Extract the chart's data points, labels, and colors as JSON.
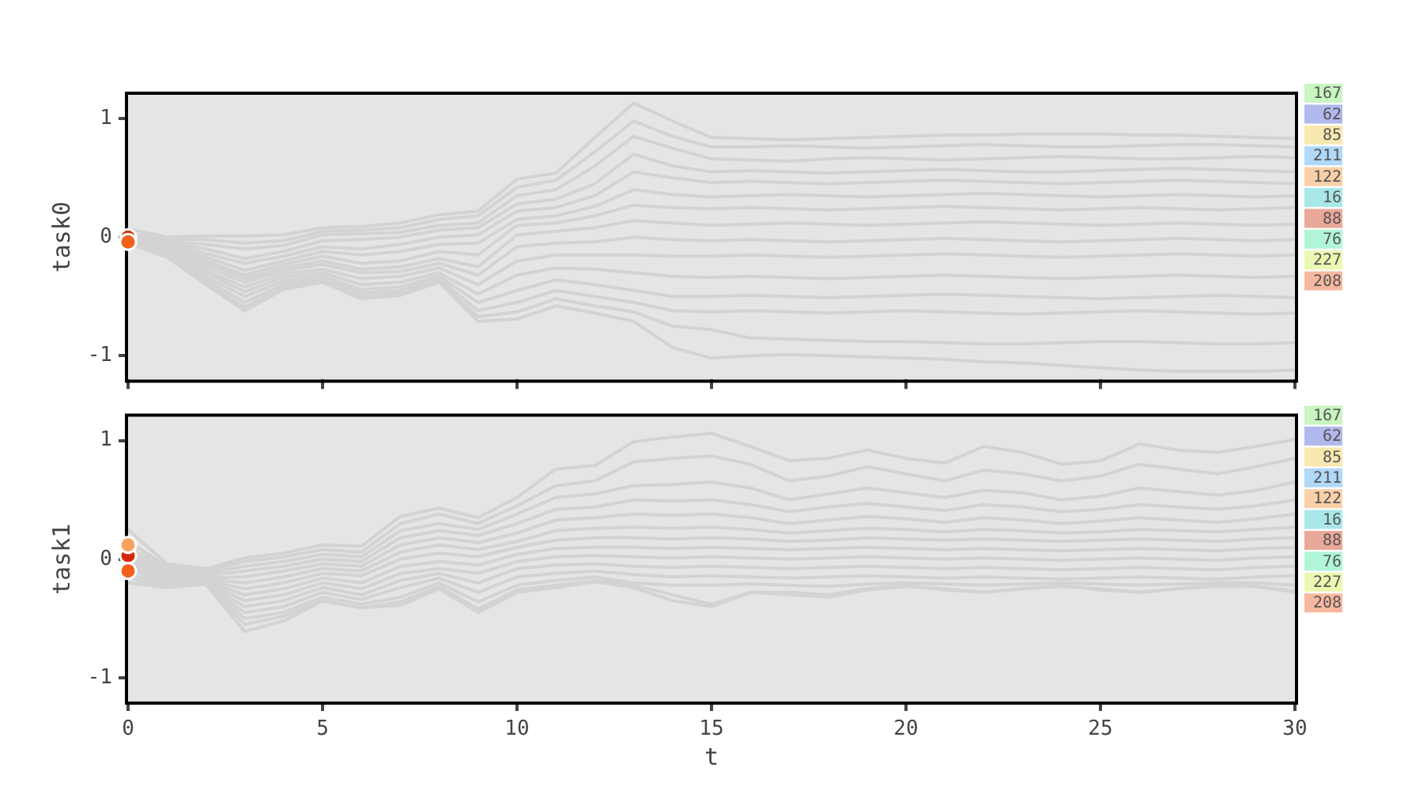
{
  "chart_data": [
    {
      "type": "line",
      "ylabel": "task0",
      "x": [
        0,
        1,
        2,
        3,
        4,
        5,
        6,
        7,
        8,
        9,
        10,
        11,
        12,
        13,
        14,
        15,
        16,
        17,
        18,
        19,
        20,
        21,
        22,
        23,
        24,
        25,
        26,
        27,
        28,
        29,
        30
      ],
      "xlim": [
        0,
        30
      ],
      "xticks": [
        0,
        5,
        10,
        15,
        20,
        25,
        30
      ],
      "ylim": [
        -1.2,
        1.2
      ],
      "yticks": [
        -1,
        0,
        1
      ],
      "tick_labels": "y",
      "legend": "right",
      "series": [
        {
          "color": "#d3d3d3",
          "values": [
            0.07,
            0,
            0.01,
            0.01,
            0.02,
            0.08,
            0.09,
            0.12,
            0.19,
            0.22,
            0.49,
            0.54,
            0.84,
            1.13,
            0.98,
            0.84,
            0.83,
            0.82,
            0.83,
            0.84,
            0.85,
            0.86,
            0.86,
            0.87,
            0.87,
            0.87,
            0.86,
            0.86,
            0.85,
            0.84,
            0.83
          ]
        },
        {
          "color": "#d3d3d3",
          "values": [
            0.03,
            -0.02,
            -0.02,
            -0.05,
            -0.03,
            0.05,
            0.06,
            0.08,
            0.15,
            0.18,
            0.42,
            0.48,
            0.72,
            0.98,
            0.85,
            0.76,
            0.76,
            0.77,
            0.76,
            0.75,
            0.76,
            0.77,
            0.78,
            0.77,
            0.76,
            0.76,
            0.77,
            0.78,
            0.78,
            0.77,
            0.76
          ]
        },
        {
          "color": "#d3d3d3",
          "values": [
            0.02,
            -0.04,
            -0.06,
            -0.1,
            -0.07,
            0.02,
            0.03,
            0.04,
            0.1,
            0.12,
            0.35,
            0.4,
            0.6,
            0.85,
            0.75,
            0.66,
            0.65,
            0.64,
            0.66,
            0.67,
            0.66,
            0.65,
            0.66,
            0.67,
            0.68,
            0.67,
            0.66,
            0.66,
            0.67,
            0.68,
            0.67
          ]
        },
        {
          "color": "#d3d3d3",
          "values": [
            0.01,
            -0.05,
            -0.1,
            -0.18,
            -0.12,
            -0.03,
            -0.02,
            0,
            0.06,
            0.08,
            0.28,
            0.32,
            0.45,
            0.7,
            0.6,
            0.55,
            0.56,
            0.55,
            0.54,
            0.55,
            0.56,
            0.57,
            0.56,
            0.55,
            0.55,
            0.56,
            0.57,
            0.58,
            0.57,
            0.56,
            0.55
          ]
        },
        {
          "color": "#d3d3d3",
          "values": [
            0,
            -0.06,
            -0.14,
            -0.22,
            -0.16,
            -0.08,
            -0.1,
            -0.06,
            0,
            0.02,
            0.22,
            0.25,
            0.35,
            0.55,
            0.5,
            0.46,
            0.47,
            0.46,
            0.45,
            0.46,
            0.47,
            0.48,
            0.47,
            0.46,
            0.45,
            0.46,
            0.47,
            0.48,
            0.47,
            0.46,
            0.45
          ]
        },
        {
          "color": "#d3d3d3",
          "values": [
            0,
            -0.07,
            -0.17,
            -0.28,
            -0.2,
            -0.12,
            -0.15,
            -0.12,
            -0.06,
            -0.05,
            0.15,
            0.18,
            0.26,
            0.4,
            0.36,
            0.34,
            0.35,
            0.36,
            0.35,
            0.34,
            0.35,
            0.36,
            0.37,
            0.36,
            0.35,
            0.34,
            0.35,
            0.36,
            0.35,
            0.34,
            0.35
          ]
        },
        {
          "color": "#d3d3d3",
          "values": [
            0,
            -0.08,
            -0.2,
            -0.32,
            -0.23,
            -0.16,
            -0.22,
            -0.2,
            -0.12,
            -0.15,
            0.1,
            0.12,
            0.18,
            0.27,
            0.25,
            0.24,
            0.25,
            0.24,
            0.23,
            0.24,
            0.25,
            0.26,
            0.25,
            0.24,
            0.23,
            0.24,
            0.25,
            0.24,
            0.23,
            0.24,
            0.25
          ]
        },
        {
          "color": "#d3d3d3",
          "values": [
            -0.01,
            -0.09,
            -0.22,
            -0.35,
            -0.26,
            -0.2,
            -0.27,
            -0.25,
            -0.18,
            -0.25,
            0.02,
            0.05,
            0.08,
            0.14,
            0.12,
            0.1,
            0.11,
            0.12,
            0.11,
            0.1,
            0.11,
            0.12,
            0.13,
            0.12,
            0.11,
            0.1,
            0.11,
            0.12,
            0.11,
            0.1,
            0.11
          ]
        },
        {
          "color": "#d3d3d3",
          "values": [
            -0.01,
            -0.1,
            -0.25,
            -0.38,
            -0.28,
            -0.23,
            -0.3,
            -0.29,
            -0.22,
            -0.32,
            -0.08,
            -0.05,
            -0.04,
            0,
            -0.02,
            -0.03,
            -0.02,
            -0.03,
            -0.04,
            -0.03,
            -0.02,
            -0.01,
            -0.02,
            -0.03,
            -0.04,
            -0.03,
            -0.02,
            -0.01,
            -0.02,
            -0.03,
            -0.02
          ]
        },
        {
          "color": "#d3d3d3",
          "values": [
            -0.02,
            -0.11,
            -0.28,
            -0.42,
            -0.31,
            -0.27,
            -0.35,
            -0.33,
            -0.26,
            -0.4,
            -0.2,
            -0.15,
            -0.15,
            -0.15,
            -0.16,
            -0.16,
            -0.15,
            -0.16,
            -0.17,
            -0.16,
            -0.15,
            -0.14,
            -0.15,
            -0.16,
            -0.17,
            -0.16,
            -0.15,
            -0.14,
            -0.15,
            -0.16,
            -0.15
          ]
        },
        {
          "color": "#d3d3d3",
          "values": [
            -0.02,
            -0.12,
            -0.3,
            -0.46,
            -0.34,
            -0.3,
            -0.4,
            -0.38,
            -0.3,
            -0.48,
            -0.32,
            -0.26,
            -0.27,
            -0.3,
            -0.33,
            -0.34,
            -0.33,
            -0.34,
            -0.35,
            -0.34,
            -0.33,
            -0.32,
            -0.33,
            -0.34,
            -0.35,
            -0.34,
            -0.33,
            -0.32,
            -0.33,
            -0.34,
            -0.33
          ]
        },
        {
          "color": "#d3d3d3",
          "values": [
            -0.03,
            -0.13,
            -0.33,
            -0.5,
            -0.37,
            -0.33,
            -0.44,
            -0.42,
            -0.33,
            -0.55,
            -0.45,
            -0.36,
            -0.4,
            -0.45,
            -0.5,
            -0.5,
            -0.49,
            -0.5,
            -0.51,
            -0.5,
            -0.49,
            -0.48,
            -0.49,
            -0.5,
            -0.51,
            -0.52,
            -0.51,
            -0.5,
            -0.49,
            -0.5,
            -0.51
          ]
        },
        {
          "color": "#d3d3d3",
          "values": [
            -0.04,
            -0.15,
            -0.36,
            -0.55,
            -0.4,
            -0.35,
            -0.47,
            -0.45,
            -0.35,
            -0.62,
            -0.55,
            -0.45,
            -0.5,
            -0.55,
            -0.62,
            -0.63,
            -0.62,
            -0.63,
            -0.64,
            -0.63,
            -0.62,
            -0.63,
            -0.64,
            -0.65,
            -0.64,
            -0.63,
            -0.62,
            -0.63,
            -0.64,
            -0.65,
            -0.64
          ]
        },
        {
          "color": "#d3d3d3",
          "values": [
            -0.05,
            -0.16,
            -0.38,
            -0.59,
            -0.42,
            -0.37,
            -0.5,
            -0.47,
            -0.37,
            -0.67,
            -0.63,
            -0.52,
            -0.58,
            -0.63,
            -0.75,
            -0.78,
            -0.85,
            -0.86,
            -0.87,
            -0.88,
            -0.88,
            -0.89,
            -0.9,
            -0.9,
            -0.89,
            -0.88,
            -0.88,
            -0.89,
            -0.9,
            -0.9,
            -0.89
          ]
        },
        {
          "color": "#d3d3d3",
          "values": [
            -0.05,
            -0.17,
            -0.4,
            -0.62,
            -0.44,
            -0.38,
            -0.52,
            -0.49,
            -0.38,
            -0.71,
            -0.69,
            -0.58,
            -0.64,
            -0.71,
            -0.93,
            -1.02,
            -1,
            -0.99,
            -1,
            -1.01,
            -1.02,
            -1.03,
            -1.05,
            -1.06,
            -1.08,
            -1.1,
            -1.12,
            -1.13,
            -1.13,
            -1.13,
            -1.12
          ]
        },
        {
          "type": "scatter",
          "marker": "circle",
          "color": "#f2611a",
          "values": [
            -0.04,
            null,
            null,
            null,
            null,
            null,
            null,
            null,
            null,
            null,
            null,
            null,
            null,
            null,
            null,
            null,
            null,
            null,
            null,
            null,
            null,
            null,
            null,
            null,
            null,
            null,
            null,
            null,
            null,
            null,
            null
          ]
        },
        {
          "type": "scatter",
          "marker": "circle",
          "color": "#d42a0a",
          "values": [
            0,
            null,
            null,
            null,
            null,
            null,
            null,
            null,
            null,
            null,
            null,
            null,
            null,
            null,
            null,
            null,
            null,
            null,
            null,
            null,
            null,
            null,
            null,
            null,
            null,
            null,
            null,
            null,
            null,
            null,
            null
          ]
        },
        {
          "name": "167",
          "color": "#c8f5c0",
          "values": [
            null,
            null,
            null,
            null,
            null,
            null,
            null,
            null,
            null,
            null,
            null,
            null,
            null,
            null,
            null,
            null,
            null,
            null,
            null,
            null,
            null,
            null,
            null,
            null,
            null,
            null,
            null,
            null,
            null,
            null,
            null
          ]
        },
        {
          "name": "62",
          "color": "#b0b8ec",
          "values": [
            null,
            null,
            null,
            null,
            null,
            null,
            null,
            null,
            null,
            null,
            null,
            null,
            null,
            null,
            null,
            null,
            null,
            null,
            null,
            null,
            null,
            null,
            null,
            null,
            null,
            null,
            null,
            null,
            null,
            null,
            null
          ]
        },
        {
          "name": "85",
          "color": "#f8e8b0",
          "values": [
            null,
            null,
            null,
            null,
            null,
            null,
            null,
            null,
            null,
            null,
            null,
            null,
            null,
            null,
            null,
            null,
            null,
            null,
            null,
            null,
            null,
            null,
            null,
            null,
            null,
            null,
            null,
            null,
            null,
            null,
            null
          ]
        },
        {
          "name": "211",
          "color": "#b0d8f8",
          "values": [
            null,
            null,
            null,
            null,
            null,
            null,
            null,
            null,
            null,
            null,
            null,
            null,
            null,
            null,
            null,
            null,
            null,
            null,
            null,
            null,
            null,
            null,
            null,
            null,
            null,
            null,
            null,
            null,
            null,
            null,
            null
          ]
        },
        {
          "name": "122",
          "color": "#fad0a8",
          "values": [
            null,
            null,
            null,
            null,
            null,
            null,
            null,
            null,
            null,
            null,
            null,
            null,
            null,
            null,
            null,
            null,
            null,
            null,
            null,
            null,
            null,
            null,
            null,
            null,
            null,
            null,
            null,
            null,
            null,
            null,
            null
          ]
        },
        {
          "name": "16",
          "color": "#a8e8e8",
          "values": [
            null,
            null,
            null,
            null,
            null,
            null,
            null,
            null,
            null,
            null,
            null,
            null,
            null,
            null,
            null,
            null,
            null,
            null,
            null,
            null,
            null,
            null,
            null,
            null,
            null,
            null,
            null,
            null,
            null,
            null,
            null
          ]
        },
        {
          "name": "88",
          "color": "#eaa898",
          "values": [
            null,
            null,
            null,
            null,
            null,
            null,
            null,
            null,
            null,
            null,
            null,
            null,
            null,
            null,
            null,
            null,
            null,
            null,
            null,
            null,
            null,
            null,
            null,
            null,
            null,
            null,
            null,
            null,
            null,
            null,
            null
          ]
        },
        {
          "name": "76",
          "color": "#b0f5d8",
          "values": [
            null,
            null,
            null,
            null,
            null,
            null,
            null,
            null,
            null,
            null,
            null,
            null,
            null,
            null,
            null,
            null,
            null,
            null,
            null,
            null,
            null,
            null,
            null,
            null,
            null,
            null,
            null,
            null,
            null,
            null,
            null
          ]
        },
        {
          "name": "227",
          "color": "#eaf8b0",
          "values": [
            null,
            null,
            null,
            null,
            null,
            null,
            null,
            null,
            null,
            null,
            null,
            null,
            null,
            null,
            null,
            null,
            null,
            null,
            null,
            null,
            null,
            null,
            null,
            null,
            null,
            null,
            null,
            null,
            null,
            null,
            null
          ]
        },
        {
          "name": "208",
          "color": "#f8b8a0",
          "values": [
            null,
            null,
            null,
            null,
            null,
            null,
            null,
            null,
            null,
            null,
            null,
            null,
            null,
            null,
            null,
            null,
            null,
            null,
            null,
            null,
            null,
            null,
            null,
            null,
            null,
            null,
            null,
            null,
            null,
            null,
            null
          ]
        }
      ]
    },
    {
      "type": "line",
      "xlabel": "t",
      "ylabel": "task1",
      "x": [
        0,
        1,
        2,
        3,
        4,
        5,
        6,
        7,
        8,
        9,
        10,
        11,
        12,
        13,
        14,
        15,
        16,
        17,
        18,
        19,
        20,
        21,
        22,
        23,
        24,
        25,
        26,
        27,
        28,
        29,
        30
      ],
      "xlim": [
        0,
        30
      ],
      "xticks": [
        0,
        5,
        10,
        15,
        20,
        25,
        30
      ],
      "ylim": [
        -1.2,
        1.2
      ],
      "yticks": [
        -1,
        0,
        1
      ],
      "legend": "right",
      "series": [
        {
          "color": "#d3d3d3",
          "values": [
            0.25,
            -0.04,
            -0.08,
            0.01,
            0.05,
            0.12,
            0.11,
            0.36,
            0.43,
            0.35,
            0.52,
            0.76,
            0.79,
            0.99,
            1.03,
            1.06,
            0.95,
            0.83,
            0.85,
            0.92,
            0.85,
            0.81,
            0.95,
            0.9,
            0.8,
            0.83,
            0.97,
            0.92,
            0.9,
            0.95,
            1.01
          ]
        },
        {
          "color": "#d3d3d3",
          "values": [
            0.15,
            -0.06,
            -0.1,
            -0.02,
            0.02,
            0.08,
            0.06,
            0.3,
            0.38,
            0.3,
            0.45,
            0.62,
            0.66,
            0.82,
            0.85,
            0.87,
            0.8,
            0.66,
            0.7,
            0.78,
            0.72,
            0.66,
            0.75,
            0.72,
            0.66,
            0.7,
            0.8,
            0.76,
            0.72,
            0.78,
            0.85
          ]
        },
        {
          "color": "#d3d3d3",
          "values": [
            0.1,
            -0.08,
            -0.12,
            -0.06,
            -0.02,
            0.04,
            0.02,
            0.24,
            0.3,
            0.25,
            0.38,
            0.52,
            0.55,
            0.62,
            0.63,
            0.65,
            0.6,
            0.5,
            0.55,
            0.6,
            0.56,
            0.52,
            0.58,
            0.56,
            0.5,
            0.53,
            0.6,
            0.57,
            0.54,
            0.58,
            0.65
          ]
        },
        {
          "color": "#d3d3d3",
          "values": [
            0.06,
            -0.1,
            -0.14,
            -0.1,
            -0.06,
            0,
            -0.02,
            0.18,
            0.24,
            0.2,
            0.3,
            0.42,
            0.44,
            0.5,
            0.49,
            0.5,
            0.46,
            0.4,
            0.44,
            0.47,
            0.44,
            0.41,
            0.46,
            0.44,
            0.4,
            0.42,
            0.46,
            0.44,
            0.42,
            0.45,
            0.5
          ]
        },
        {
          "color": "#d3d3d3",
          "values": [
            0.03,
            -0.12,
            -0.16,
            -0.15,
            -0.1,
            -0.04,
            -0.06,
            0.12,
            0.18,
            0.14,
            0.22,
            0.33,
            0.35,
            0.38,
            0.37,
            0.38,
            0.35,
            0.3,
            0.33,
            0.36,
            0.34,
            0.31,
            0.35,
            0.33,
            0.3,
            0.32,
            0.35,
            0.33,
            0.31,
            0.34,
            0.38
          ]
        },
        {
          "color": "#d3d3d3",
          "values": [
            0.01,
            -0.13,
            -0.17,
            -0.2,
            -0.15,
            -0.08,
            -0.1,
            0.06,
            0.12,
            0.08,
            0.15,
            0.24,
            0.26,
            0.27,
            0.26,
            0.27,
            0.25,
            0.22,
            0.24,
            0.26,
            0.25,
            0.23,
            0.25,
            0.24,
            0.22,
            0.23,
            0.25,
            0.24,
            0.23,
            0.25,
            0.27
          ]
        },
        {
          "color": "#d3d3d3",
          "values": [
            0,
            -0.14,
            -0.18,
            -0.25,
            -0.2,
            -0.12,
            -0.14,
            0,
            0.05,
            0.02,
            0.1,
            0.16,
            0.18,
            0.18,
            0.17,
            0.18,
            0.17,
            0.15,
            0.16,
            0.18,
            0.17,
            0.16,
            0.17,
            0.16,
            0.15,
            0.16,
            0.17,
            0.16,
            0.15,
            0.17,
            0.18
          ]
        },
        {
          "color": "#d3d3d3",
          "values": [
            -0.02,
            -0.15,
            -0.19,
            -0.3,
            -0.25,
            -0.16,
            -0.2,
            -0.06,
            -0.02,
            -0.05,
            0.04,
            0.09,
            0.1,
            0.1,
            0.09,
            0.1,
            0.09,
            0.08,
            0.09,
            0.1,
            0.09,
            0.08,
            0.09,
            0.08,
            0.07,
            0.08,
            0.09,
            0.08,
            0.07,
            0.09,
            0.1
          ]
        },
        {
          "color": "#d3d3d3",
          "values": [
            -0.04,
            -0.17,
            -0.2,
            -0.35,
            -0.3,
            -0.2,
            -0.25,
            -0.12,
            -0.08,
            -0.12,
            -0.02,
            0.02,
            0.03,
            0.02,
            0.01,
            0.02,
            0.01,
            0,
            0.01,
            0.02,
            0.01,
            0,
            0.01,
            0,
            -0.01,
            0,
            0.01,
            0,
            -0.01,
            0.01,
            0.02
          ]
        },
        {
          "color": "#d3d3d3",
          "values": [
            -0.06,
            -0.18,
            -0.21,
            -0.4,
            -0.35,
            -0.24,
            -0.3,
            -0.18,
            -0.12,
            -0.2,
            -0.08,
            -0.05,
            -0.04,
            -0.06,
            -0.07,
            -0.06,
            -0.07,
            -0.08,
            -0.07,
            -0.06,
            -0.07,
            -0.08,
            -0.07,
            -0.08,
            -0.09,
            -0.08,
            -0.07,
            -0.08,
            -0.09,
            -0.07,
            -0.06
          ]
        },
        {
          "color": "#d3d3d3",
          "values": [
            -0.08,
            -0.2,
            -0.21,
            -0.45,
            -0.4,
            -0.28,
            -0.34,
            -0.24,
            -0.16,
            -0.28,
            -0.15,
            -0.12,
            -0.1,
            -0.13,
            -0.15,
            -0.14,
            -0.15,
            -0.16,
            -0.15,
            -0.14,
            -0.15,
            -0.16,
            -0.15,
            -0.16,
            -0.17,
            -0.16,
            -0.15,
            -0.16,
            -0.17,
            -0.15,
            -0.14
          ]
        },
        {
          "color": "#d3d3d3",
          "values": [
            -0.12,
            -0.22,
            -0.21,
            -0.5,
            -0.45,
            -0.32,
            -0.38,
            -0.32,
            -0.2,
            -0.36,
            -0.22,
            -0.18,
            -0.15,
            -0.2,
            -0.22,
            -0.22,
            -0.21,
            -0.22,
            -0.23,
            -0.21,
            -0.2,
            -0.21,
            -0.22,
            -0.21,
            -0.2,
            -0.21,
            -0.22,
            -0.21,
            -0.2,
            -0.2,
            -0.22
          ]
        },
        {
          "color": "#d3d3d3",
          "values": [
            -0.16,
            -0.23,
            -0.21,
            -0.55,
            -0.48,
            -0.35,
            -0.41,
            -0.36,
            -0.23,
            -0.42,
            -0.26,
            -0.22,
            -0.18,
            -0.22,
            -0.3,
            -0.38,
            -0.28,
            -0.28,
            -0.3,
            -0.25,
            -0.22,
            -0.26,
            -0.28,
            -0.25,
            -0.22,
            -0.26,
            -0.28,
            -0.25,
            -0.22,
            -0.23,
            -0.27
          ]
        },
        {
          "color": "#d3d3d3",
          "values": [
            -0.2,
            -0.24,
            -0.21,
            -0.61,
            -0.52,
            -0.35,
            -0.41,
            -0.39,
            -0.25,
            -0.45,
            -0.28,
            -0.24,
            -0.19,
            -0.24,
            -0.35,
            -0.4,
            -0.28,
            -0.3,
            -0.32,
            -0.26,
            -0.23,
            -0.25,
            -0.28,
            -0.25,
            -0.23,
            -0.25,
            -0.28,
            -0.25,
            -0.23,
            -0.23,
            -0.28
          ]
        },
        {
          "type": "scatter",
          "marker": "circle",
          "color": "#f7a55e",
          "values": [
            0.12,
            null,
            null,
            null,
            null,
            null,
            null,
            null,
            null,
            null,
            null,
            null,
            null,
            null,
            null,
            null,
            null,
            null,
            null,
            null,
            null,
            null,
            null,
            null,
            null,
            null,
            null,
            null,
            null,
            null,
            null
          ]
        },
        {
          "type": "scatter",
          "marker": "circle",
          "color": "#f2611a",
          "values": [
            -0.1,
            null,
            null,
            null,
            null,
            null,
            null,
            null,
            null,
            null,
            null,
            null,
            null,
            null,
            null,
            null,
            null,
            null,
            null,
            null,
            null,
            null,
            null,
            null,
            null,
            null,
            null,
            null,
            null,
            null,
            null
          ]
        },
        {
          "type": "scatter",
          "marker": "circle",
          "color": "#d42a0a",
          "values": [
            0.03,
            null,
            null,
            null,
            null,
            null,
            null,
            null,
            null,
            null,
            null,
            null,
            null,
            null,
            null,
            null,
            null,
            null,
            null,
            null,
            null,
            null,
            null,
            null,
            null,
            null,
            null,
            null,
            null,
            null,
            null
          ]
        },
        {
          "name": "167",
          "color": "#c8f5c0",
          "values": [
            null,
            null,
            null,
            null,
            null,
            null,
            null,
            null,
            null,
            null,
            null,
            null,
            null,
            null,
            null,
            null,
            null,
            null,
            null,
            null,
            null,
            null,
            null,
            null,
            null,
            null,
            null,
            null,
            null,
            null,
            null
          ]
        },
        {
          "name": "62",
          "color": "#b0b8ec",
          "values": [
            null,
            null,
            null,
            null,
            null,
            null,
            null,
            null,
            null,
            null,
            null,
            null,
            null,
            null,
            null,
            null,
            null,
            null,
            null,
            null,
            null,
            null,
            null,
            null,
            null,
            null,
            null,
            null,
            null,
            null,
            null
          ]
        },
        {
          "name": "85",
          "color": "#f8e8b0",
          "values": [
            null,
            null,
            null,
            null,
            null,
            null,
            null,
            null,
            null,
            null,
            null,
            null,
            null,
            null,
            null,
            null,
            null,
            null,
            null,
            null,
            null,
            null,
            null,
            null,
            null,
            null,
            null,
            null,
            null,
            null,
            null
          ]
        },
        {
          "name": "211",
          "color": "#b0d8f8",
          "values": [
            null,
            null,
            null,
            null,
            null,
            null,
            null,
            null,
            null,
            null,
            null,
            null,
            null,
            null,
            null,
            null,
            null,
            null,
            null,
            null,
            null,
            null,
            null,
            null,
            null,
            null,
            null,
            null,
            null,
            null,
            null
          ]
        },
        {
          "name": "122",
          "color": "#fad0a8",
          "values": [
            null,
            null,
            null,
            null,
            null,
            null,
            null,
            null,
            null,
            null,
            null,
            null,
            null,
            null,
            null,
            null,
            null,
            null,
            null,
            null,
            null,
            null,
            null,
            null,
            null,
            null,
            null,
            null,
            null,
            null,
            null
          ]
        },
        {
          "name": "16",
          "color": "#a8e8e8",
          "values": [
            null,
            null,
            null,
            null,
            null,
            null,
            null,
            null,
            null,
            null,
            null,
            null,
            null,
            null,
            null,
            null,
            null,
            null,
            null,
            null,
            null,
            null,
            null,
            null,
            null,
            null,
            null,
            null,
            null,
            null,
            null
          ]
        },
        {
          "name": "88",
          "color": "#eaa898",
          "values": [
            null,
            null,
            null,
            null,
            null,
            null,
            null,
            null,
            null,
            null,
            null,
            null,
            null,
            null,
            null,
            null,
            null,
            null,
            null,
            null,
            null,
            null,
            null,
            null,
            null,
            null,
            null,
            null,
            null,
            null,
            null
          ]
        },
        {
          "name": "76",
          "color": "#b0f5d8",
          "values": [
            null,
            null,
            null,
            null,
            null,
            null,
            null,
            null,
            null,
            null,
            null,
            null,
            null,
            null,
            null,
            null,
            null,
            null,
            null,
            null,
            null,
            null,
            null,
            null,
            null,
            null,
            null,
            null,
            null,
            null,
            null
          ]
        },
        {
          "name": "227",
          "color": "#eaf8b0",
          "values": [
            null,
            null,
            null,
            null,
            null,
            null,
            null,
            null,
            null,
            null,
            null,
            null,
            null,
            null,
            null,
            null,
            null,
            null,
            null,
            null,
            null,
            null,
            null,
            null,
            null,
            null,
            null,
            null,
            null,
            null,
            null
          ]
        },
        {
          "name": "208",
          "color": "#f8b8a0",
          "values": [
            null,
            null,
            null,
            null,
            null,
            null,
            null,
            null,
            null,
            null,
            null,
            null,
            null,
            null,
            null,
            null,
            null,
            null,
            null,
            null,
            null,
            null,
            null,
            null,
            null,
            null,
            null,
            null,
            null,
            null,
            null
          ]
        }
      ]
    }
  ]
}
